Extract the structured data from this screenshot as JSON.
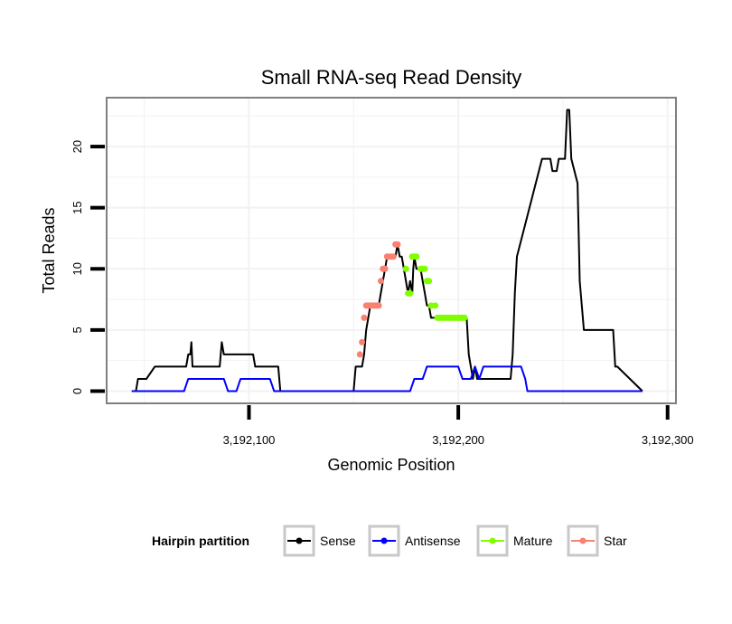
{
  "chart_data": {
    "type": "line",
    "title": "Small RNA-seq Read Density",
    "xlabel": "Genomic Position",
    "ylabel": "Total Reads",
    "xlim": [
      3192032,
      3192304
    ],
    "ylim": [
      -1.0,
      24.0
    ],
    "x_ticks": [
      3192100,
      3192200,
      3192300
    ],
    "x_tick_labels": [
      "3,192,100",
      "3,192,200",
      "3,192,300"
    ],
    "y_ticks": [
      0,
      5,
      10,
      15,
      20
    ],
    "y_tick_labels": [
      "0",
      "5",
      "10",
      "15",
      "20"
    ],
    "grid": true,
    "legend": {
      "title": "Hairpin partition",
      "position": "bottom",
      "entries": [
        {
          "name": "Sense",
          "color": "#000000"
        },
        {
          "name": "Antisense",
          "color": "#0000ff"
        },
        {
          "name": "Mature",
          "color": "#7fff00"
        },
        {
          "name": "Star",
          "color": "#fa8072"
        }
      ]
    },
    "series": [
      {
        "name": "Sense",
        "color": "#000000",
        "style": "line",
        "x": [
          3192044,
          3192046,
          3192047,
          3192050,
          3192051,
          3192055,
          3192070,
          3192071,
          3192072,
          3192072.5,
          3192073,
          3192074,
          3192086,
          3192087,
          3192088,
          3192089,
          3192090,
          3192092,
          3192102,
          3192103,
          3192104,
          3192114,
          3192115,
          3192116,
          3192119,
          3192120,
          3192150,
          3192151,
          3192154,
          3192155,
          3192156,
          3192157,
          3192158,
          3192159,
          3192162,
          3192163,
          3192164,
          3192165,
          3192166,
          3192167,
          3192170,
          3192171,
          3192172,
          3192173,
          3192176,
          3192177,
          3192178,
          3192178.5,
          3192179,
          3192180,
          3192181,
          3192182,
          3192183,
          3192184,
          3192185,
          3192186,
          3192187,
          3192188,
          3192189,
          3192190,
          3192204,
          3192205,
          3192206,
          3192207,
          3192208,
          3192209,
          3192210,
          3192211,
          3192212,
          3192225,
          3192226,
          3192227,
          3192228,
          3192240,
          3192241,
          3192244,
          3192245,
          3192246,
          3192247,
          3192248,
          3192251,
          3192252,
          3192253,
          3192254,
          3192257,
          3192258,
          3192259,
          3192260,
          3192273,
          3192274,
          3192275,
          3192276,
          3192288
        ],
        "y": [
          0,
          0,
          1,
          1,
          1,
          2,
          2,
          3,
          3,
          4,
          2,
          2,
          2,
          4,
          3,
          3,
          3,
          3,
          3,
          2,
          2,
          2,
          0,
          0,
          0,
          0,
          0,
          2,
          2,
          3,
          5,
          6,
          7,
          7,
          7,
          8,
          9,
          10,
          11,
          11,
          11,
          12,
          11,
          11,
          8,
          9,
          8,
          10,
          11,
          10,
          10,
          10,
          9,
          8,
          7,
          7,
          6,
          6,
          6,
          6,
          6,
          3,
          2,
          1,
          2,
          1,
          1,
          1,
          1,
          1,
          3,
          8,
          11,
          19,
          19,
          19,
          18,
          18,
          18,
          19,
          19,
          23,
          23,
          19,
          17,
          9,
          7,
          5,
          5,
          5,
          2,
          2,
          0
        ]
      },
      {
        "name": "Antisense",
        "color": "#0000ff",
        "style": "line",
        "x": [
          3192044,
          3192069,
          3192070,
          3192071,
          3192088,
          3192089,
          3192090,
          3192094,
          3192095,
          3192096,
          3192110,
          3192111,
          3192112,
          3192177,
          3192178,
          3192179,
          3192180,
          3192183,
          3192184,
          3192185,
          3192200,
          3192201,
          3192202,
          3192206,
          3192207,
          3192208,
          3192209,
          3192210,
          3192211,
          3192212,
          3192230,
          3192231,
          3192232,
          3192233,
          3192288
        ],
        "y": [
          0,
          0,
          0.5,
          1,
          1,
          0.5,
          0,
          0,
          0.5,
          1,
          1,
          0.5,
          0,
          0,
          0.5,
          1,
          1,
          1,
          1.5,
          2,
          2,
          1.5,
          1,
          1,
          1.5,
          2,
          1.5,
          1,
          1.5,
          2,
          2,
          1.5,
          1,
          0,
          0
        ]
      },
      {
        "name": "Mature",
        "color": "#7fff00",
        "style": "points",
        "x": [
          3192175,
          3192176,
          3192177,
          3192178,
          3192179,
          3192180,
          3192182,
          3192183,
          3192184,
          3192185,
          3192186,
          3192187,
          3192189,
          3192190,
          3192191,
          3192192,
          3192193,
          3192194,
          3192195,
          3192196,
          3192197,
          3192198,
          3192199,
          3192200,
          3192201,
          3192202,
          3192203
        ],
        "y": [
          10,
          8,
          8,
          11,
          11,
          11,
          10,
          10,
          10,
          9,
          9,
          7,
          7,
          6,
          6,
          6,
          6,
          6,
          6,
          6,
          6,
          6,
          6,
          6,
          6,
          6,
          6
        ]
      },
      {
        "name": "Star",
        "color": "#fa8072",
        "style": "points",
        "x": [
          3192153,
          3192154,
          3192155,
          3192156,
          3192157,
          3192158,
          3192159,
          3192160,
          3192161,
          3192162,
          3192163,
          3192164,
          3192165,
          3192166,
          3192167,
          3192168,
          3192169,
          3192170,
          3192171
        ],
        "y": [
          3,
          4,
          6,
          7,
          7,
          7,
          7,
          7,
          7,
          7,
          9,
          10,
          10,
          11,
          11,
          11,
          11,
          12,
          12
        ]
      }
    ]
  }
}
